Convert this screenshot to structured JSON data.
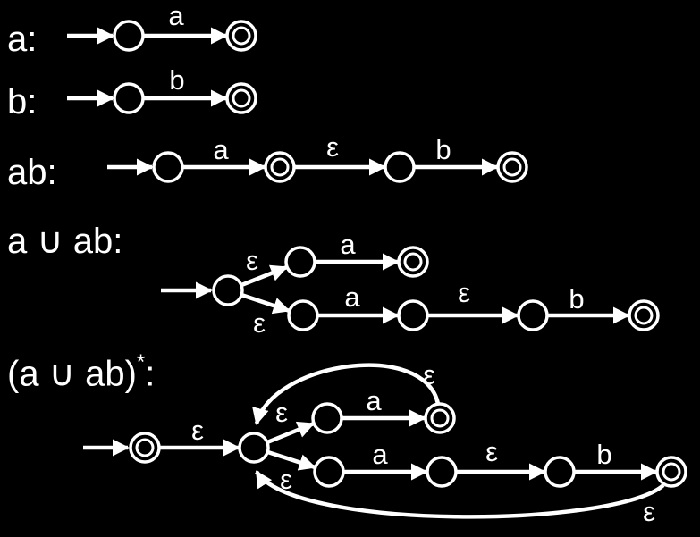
{
  "diagram": {
    "background": "#000000",
    "foreground": "#ffffff",
    "rows": [
      {
        "label": "a:",
        "states": [
          {
            "kind": "normal"
          },
          {
            "kind": "accept"
          }
        ],
        "transitions": [
          {
            "from": 0,
            "to": 1,
            "symbol": "a"
          }
        ]
      },
      {
        "label": "b:",
        "states": [
          {
            "kind": "normal"
          },
          {
            "kind": "accept"
          }
        ],
        "transitions": [
          {
            "from": 0,
            "to": 1,
            "symbol": "b"
          }
        ]
      },
      {
        "label": "ab:",
        "states": [
          {
            "kind": "normal"
          },
          {
            "kind": "accept"
          },
          {
            "kind": "normal"
          },
          {
            "kind": "accept"
          }
        ],
        "transitions": [
          {
            "from": 0,
            "to": 1,
            "symbol": "a"
          },
          {
            "from": 1,
            "to": 2,
            "symbol": "ε"
          },
          {
            "from": 2,
            "to": 3,
            "symbol": "b"
          }
        ]
      },
      {
        "label": "a ∪ ab:",
        "states": [
          {
            "kind": "normal"
          },
          {
            "kind": "normal"
          },
          {
            "kind": "accept"
          },
          {
            "kind": "normal"
          },
          {
            "kind": "normal"
          },
          {
            "kind": "normal"
          },
          {
            "kind": "accept"
          }
        ],
        "transitions": [
          {
            "from": 0,
            "to": 1,
            "symbol": "ε"
          },
          {
            "from": 1,
            "to": 2,
            "symbol": "a"
          },
          {
            "from": 0,
            "to": 3,
            "symbol": "ε"
          },
          {
            "from": 3,
            "to": 4,
            "symbol": "a"
          },
          {
            "from": 4,
            "to": 5,
            "symbol": "ε"
          },
          {
            "from": 5,
            "to": 6,
            "symbol": "b"
          }
        ]
      },
      {
        "label": "(a ∪ ab)",
        "label_sup": "*",
        "label_suffix": ":",
        "states": [
          {
            "kind": "accept"
          },
          {
            "kind": "normal"
          },
          {
            "kind": "normal"
          },
          {
            "kind": "accept"
          },
          {
            "kind": "normal"
          },
          {
            "kind": "normal"
          },
          {
            "kind": "normal"
          },
          {
            "kind": "accept"
          }
        ],
        "transitions": [
          {
            "from": 0,
            "to": 1,
            "symbol": "ε"
          },
          {
            "from": 1,
            "to": 2,
            "symbol": "ε"
          },
          {
            "from": 2,
            "to": 3,
            "symbol": "a"
          },
          {
            "from": 3,
            "to": 1,
            "symbol": "ε"
          },
          {
            "from": 1,
            "to": 4,
            "symbol": "ε"
          },
          {
            "from": 4,
            "to": 5,
            "symbol": "a"
          },
          {
            "from": 5,
            "to": 6,
            "symbol": "ε"
          },
          {
            "from": 6,
            "to": 7,
            "symbol": "b"
          },
          {
            "from": 7,
            "to": 1,
            "symbol": "ε"
          }
        ]
      }
    ]
  }
}
